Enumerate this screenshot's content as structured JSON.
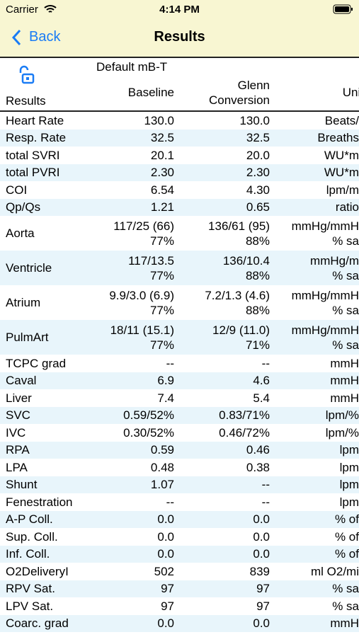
{
  "status_bar": {
    "carrier": "Carrier",
    "time": "4:14 PM"
  },
  "nav": {
    "back": "Back",
    "title": "Results"
  },
  "table": {
    "header": {
      "preset": "Default mB-T",
      "label": "Results",
      "baseline": "Baseline",
      "glenn": "Glenn\nConversion",
      "unit": "Unit"
    },
    "rows": [
      [
        "Heart Rate",
        "130.0",
        "130.0",
        "Beats/"
      ],
      [
        "Resp. Rate",
        "32.5",
        "32.5",
        "Breaths"
      ],
      [
        "total SVRI",
        "20.1",
        "20.0",
        "WU*m"
      ],
      [
        "total PVRI",
        "2.30",
        "2.30",
        "WU*m"
      ],
      [
        "COI",
        "6.54",
        "4.30",
        "lpm/m"
      ],
      [
        "Qp/Qs",
        "1.21",
        "0.65",
        "ratio"
      ],
      [
        "Aorta",
        "117/25 (66)\n77%",
        "136/61 (95)\n88%",
        "mmHg/mmH\n% sa"
      ],
      [
        "Ventricle",
        "117/13.5\n77%",
        "136/10.4\n88%",
        "mmHg/m\n% sa"
      ],
      [
        "Atrium",
        "9.9/3.0 (6.9)\n77%",
        "7.2/1.3 (4.6)\n88%",
        "mmHg/mmH\n% sa"
      ],
      [
        "PulmArt",
        "18/11 (15.1)\n77%",
        "12/9 (11.0)\n71%",
        "mmHg/mmH\n% sa"
      ],
      [
        "TCPC grad",
        "--",
        "--",
        "mmH"
      ],
      [
        "Caval",
        "6.9",
        "4.6",
        "mmH"
      ],
      [
        "Liver",
        "7.4",
        "5.4",
        "mmH"
      ],
      [
        "SVC",
        "0.59/52%",
        "0.83/71%",
        "lpm/%"
      ],
      [
        "IVC",
        "0.30/52%",
        "0.46/72%",
        "lpm/%"
      ],
      [
        "RPA",
        "0.59",
        "0.46",
        "lpm"
      ],
      [
        "LPA",
        "0.48",
        "0.38",
        "lpm"
      ],
      [
        "Shunt",
        "1.07",
        "--",
        "lpm"
      ],
      [
        "Fenestration",
        "--",
        "--",
        "lpm"
      ],
      [
        "A-P Coll.",
        "0.0",
        "0.0",
        "% of"
      ],
      [
        "Sup. Coll.",
        "0.0",
        "0.0",
        "% of"
      ],
      [
        "Inf. Coll.",
        "0.0",
        "0.0",
        "% of"
      ],
      [
        "O2DeliveryI",
        "502",
        "839",
        "ml O2/mi"
      ],
      [
        "RPV Sat.",
        "97",
        "97",
        "% sa"
      ],
      [
        "LPV Sat.",
        "97",
        "97",
        "% sa"
      ],
      [
        "Coarc. grad",
        "0.0",
        "0.0",
        "mmH"
      ]
    ]
  }
}
